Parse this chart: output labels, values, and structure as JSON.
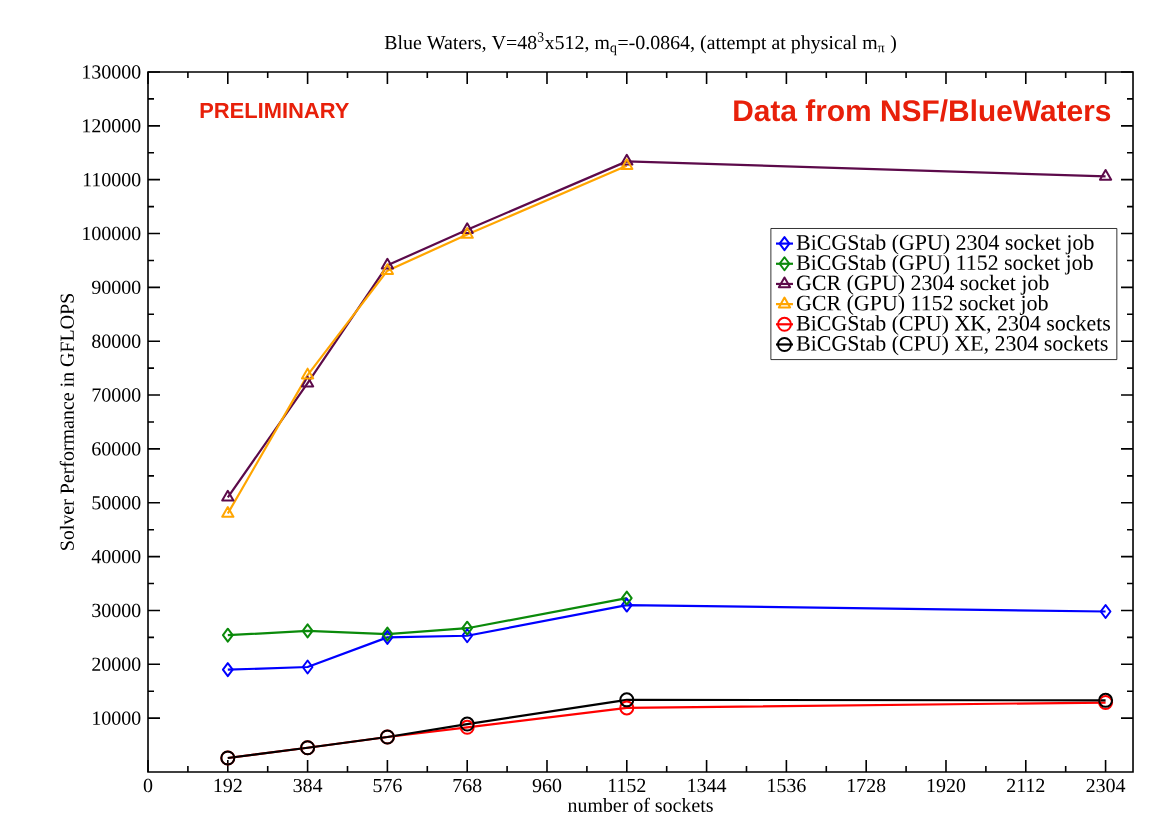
{
  "chart_data": {
    "type": "line",
    "title": "Blue Waters, V=48$^{3}$x512, m$_{q}$=-0.0864, (attempt at physical m$_{π}$ )",
    "xlabel": "number of sockets",
    "ylabel": "Solver Performance in GFLOPS",
    "annotations": [
      "PRELIMINARY",
      "Data from NSF/BlueWaters"
    ],
    "x": [
      192,
      384,
      576,
      768,
      1152,
      2304
    ],
    "series": [
      {
        "name": "BiCGStab (GPU) 2304 socket job",
        "color": "#0000ff",
        "marker": "diamond",
        "values": [
          19000,
          19500,
          25000,
          25300,
          31000,
          29800
        ]
      },
      {
        "name": "BiCGStab (GPU) 1152 socket job",
        "color": "#0a8a0a",
        "marker": "diamond",
        "values": [
          25400,
          26200,
          25600,
          26700,
          32300,
          null
        ]
      },
      {
        "name": "GCR (GPU) 2304 socket job",
        "color": "#5c0a4a",
        "marker": "triangle",
        "values": [
          51000,
          72200,
          94100,
          100700,
          113400,
          110600
        ]
      },
      {
        "name": "GCR (GPU) 1152 socket job",
        "color": "#ffa500",
        "marker": "triangle",
        "values": [
          48000,
          73700,
          93100,
          99800,
          112600,
          null
        ]
      },
      {
        "name": "BiCGStab (CPU) XK, 2304 sockets",
        "color": "#ff0000",
        "marker": "circle",
        "values": [
          2600,
          4500,
          6500,
          8300,
          11900,
          12900
        ]
      },
      {
        "name": "BiCGStab (CPU) XE, 2304 sockets",
        "color": "#000000",
        "marker": "circle",
        "values": [
          2600,
          4500,
          6500,
          8900,
          13400,
          13300
        ]
      }
    ],
    "xlim": [
      0,
      2370
    ],
    "ylim": [
      0,
      130000
    ],
    "xticks": [
      0,
      192,
      384,
      576,
      768,
      960,
      1152,
      1344,
      1536,
      1728,
      1920,
      2112,
      2304
    ],
    "yticks": [
      10000,
      20000,
      30000,
      40000,
      50000,
      60000,
      70000,
      80000,
      90000,
      100000,
      110000,
      120000,
      130000
    ],
    "legend": "right",
    "grid": false,
    "line_style": "solid"
  }
}
